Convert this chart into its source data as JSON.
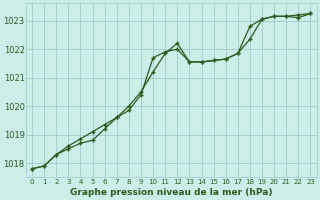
{
  "title": "Graphe pression niveau de la mer (hPa)",
  "bg_color": "#cceee8",
  "grid_color": "#99cccc",
  "line_color": "#2d5a1e",
  "xlim": [
    -0.5,
    23.5
  ],
  "ylim": [
    1017.5,
    1023.6
  ],
  "yticks": [
    1018,
    1019,
    1020,
    1021,
    1022,
    1023
  ],
  "xticks": [
    0,
    1,
    2,
    3,
    4,
    5,
    6,
    7,
    8,
    9,
    10,
    11,
    12,
    13,
    14,
    15,
    16,
    17,
    18,
    19,
    20,
    21,
    22,
    23
  ],
  "series1_x": [
    0,
    1,
    2,
    3,
    4,
    5,
    6,
    7,
    8,
    9,
    10,
    11,
    12,
    13,
    14,
    15,
    16,
    17,
    18,
    19,
    20,
    21,
    22,
    23
  ],
  "series1_y": [
    1017.8,
    1017.9,
    1018.3,
    1018.5,
    1018.7,
    1018.8,
    1019.2,
    1019.6,
    1020.0,
    1020.5,
    1021.2,
    1021.85,
    1022.2,
    1021.55,
    1021.55,
    1021.6,
    1021.65,
    1021.85,
    1022.35,
    1023.05,
    1023.15,
    1023.15,
    1023.2,
    1023.25
  ],
  "series2_x": [
    0,
    1,
    2,
    3,
    4,
    5,
    6,
    7,
    8,
    9,
    10,
    11,
    12,
    13,
    14,
    15,
    16,
    17,
    18,
    19,
    20,
    21,
    22,
    23
  ],
  "series2_y": [
    1017.8,
    1017.9,
    1018.3,
    1018.6,
    1018.85,
    1019.1,
    1019.35,
    1019.6,
    1019.85,
    1020.4,
    1021.7,
    1021.9,
    1022.0,
    1021.55,
    1021.55,
    1021.6,
    1021.65,
    1021.85,
    1022.8,
    1023.05,
    1023.15,
    1023.15,
    1023.1,
    1023.25
  ],
  "ytick_labels": [
    "1018",
    "1019",
    "1020",
    "1021",
    "1022",
    "1023"
  ]
}
